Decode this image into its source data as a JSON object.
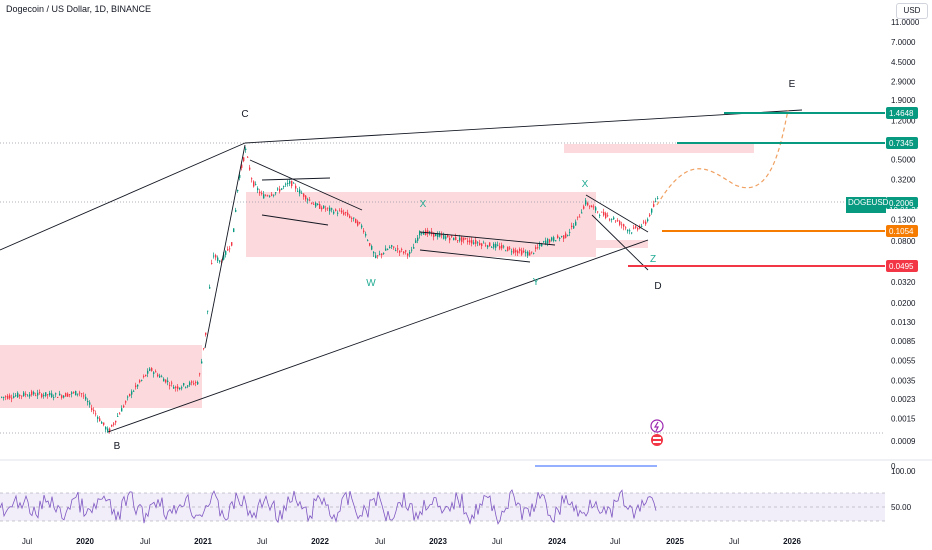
{
  "header": {
    "title": "Dogecoin / US Dollar, 1D, BINANCE",
    "currency": "USD"
  },
  "chart_data": {
    "type": "line",
    "symbol": "DOGEUSD",
    "countdown": "10:01:31",
    "y_scale": "log",
    "price_ticks": [
      "11.0000",
      "7.0000",
      "4.5000",
      "2.9000",
      "1.9000",
      "1.2000",
      "0.5000",
      "0.3200",
      "0.1300",
      "0.0800",
      "0.0320",
      "0.0200",
      "0.0130",
      "0.0085",
      "0.0055",
      "0.0035",
      "0.0023",
      "0.0015",
      "0.0009"
    ],
    "x_ticks": [
      "Jul",
      "2020",
      "Jul",
      "2021",
      "Jul",
      "2022",
      "Jul",
      "2023",
      "Jul",
      "2024",
      "Jul",
      "2025",
      "Jul",
      "2026"
    ],
    "price_tags": [
      {
        "label": "1.4648",
        "color": "#089981"
      },
      {
        "label": "0.7345",
        "color": "#089981"
      },
      {
        "label": "0.2006",
        "color": "#089981"
      },
      {
        "label": "0.1054",
        "color": "#f57c00"
      },
      {
        "label": "0.0495",
        "color": "#f23645"
      }
    ],
    "wave_labels": [
      {
        "text": "B",
        "color": "#131722"
      },
      {
        "text": "C",
        "color": "#131722"
      },
      {
        "text": "W",
        "color": "#22ab94"
      },
      {
        "text": "X",
        "color": "#22ab94"
      },
      {
        "text": "Y",
        "color": "#22ab94"
      },
      {
        "text": "X",
        "color": "#22ab94"
      },
      {
        "text": "Z",
        "color": "#22ab94"
      },
      {
        "text": "D",
        "color": "#131722"
      },
      {
        "text": "E",
        "color": "#131722"
      }
    ],
    "rsi_ticks": [
      "100.00",
      "50.00",
      "0"
    ],
    "colors": {
      "up": "#089981",
      "down": "#f23645",
      "zone": "#f7b9c0",
      "rsi": "#7e57c2",
      "projection": "#f0a060"
    }
  }
}
